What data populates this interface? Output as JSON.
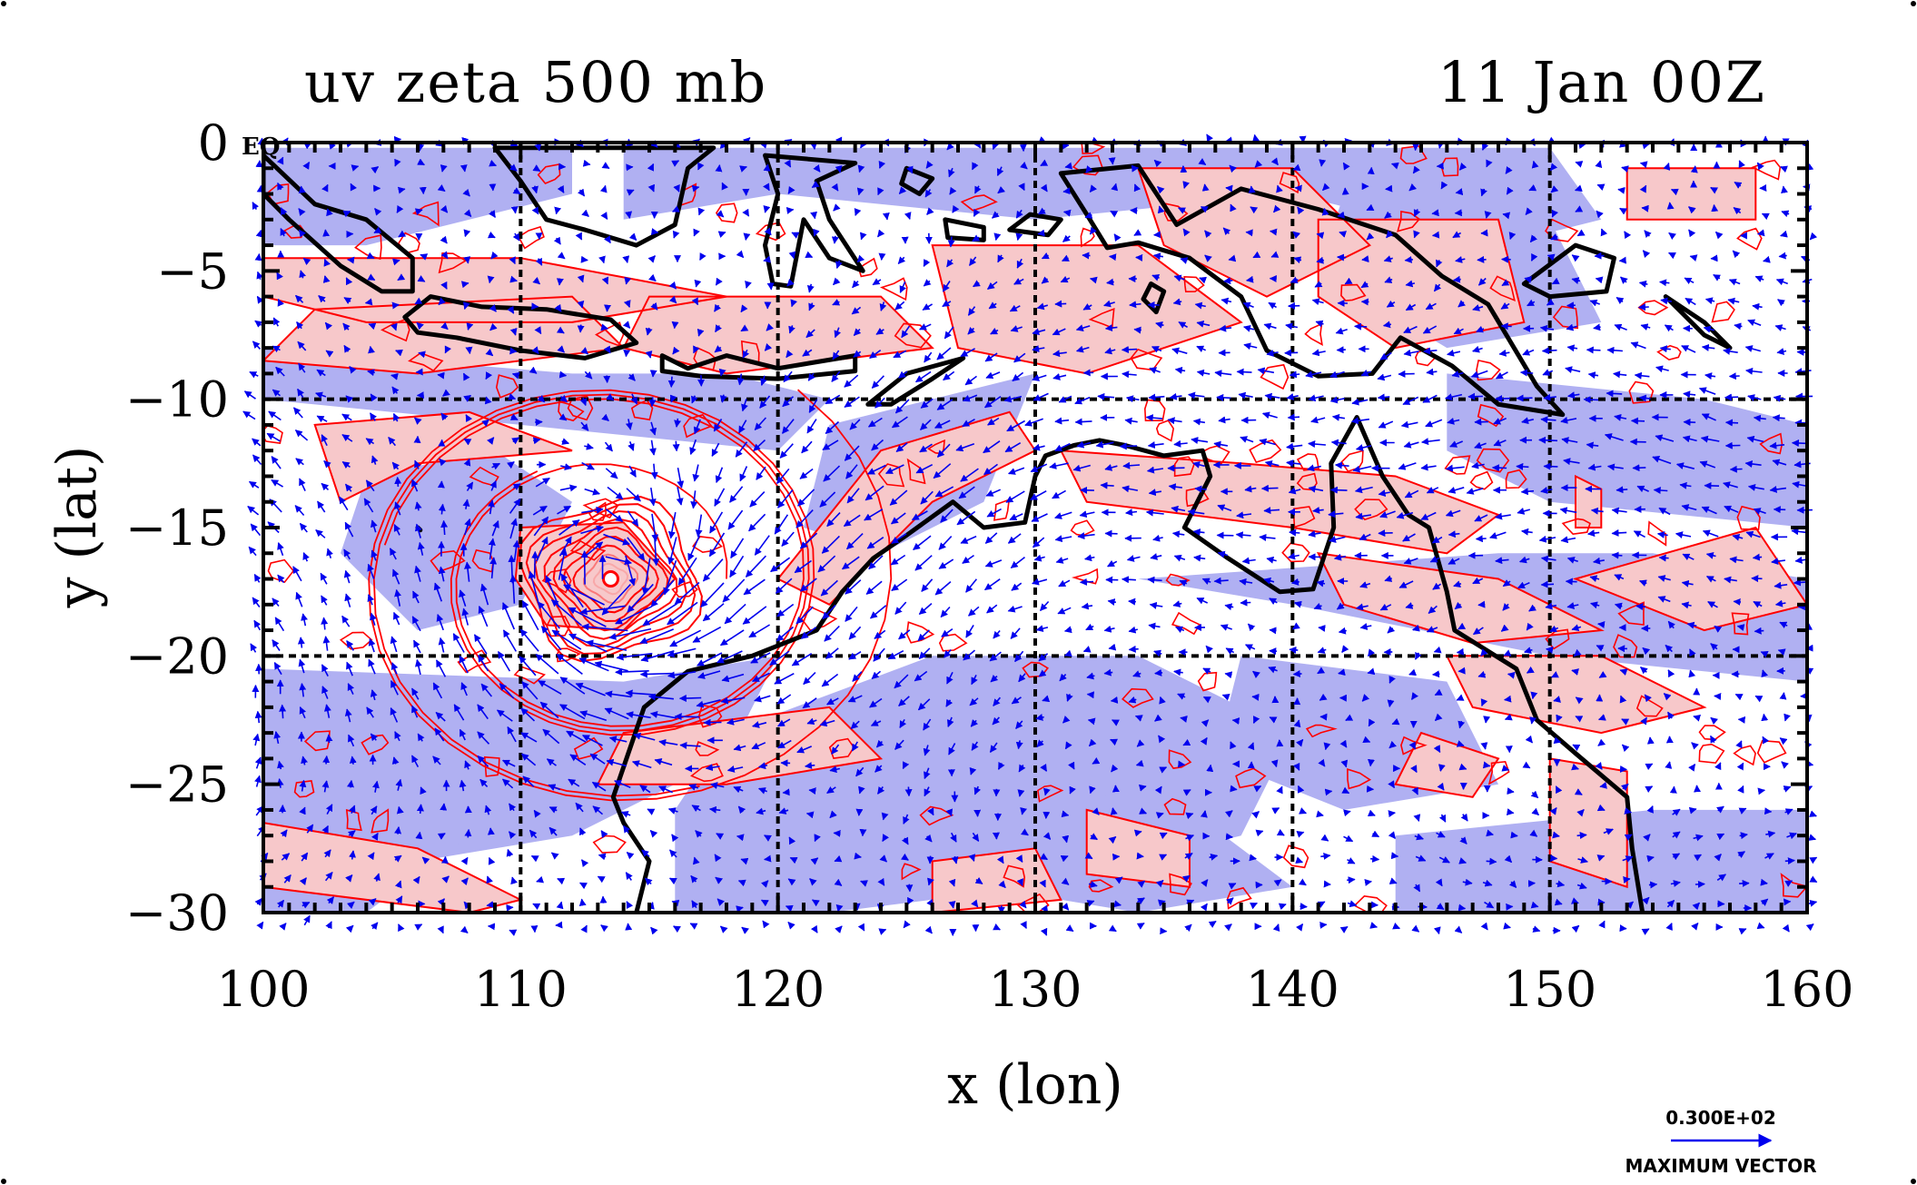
{
  "colors": {
    "positive_fill": "#f7c8ca",
    "positive_contour": "#ff0000",
    "negative_fill": "#b0b0f2",
    "vector": "#0000ee",
    "coast": "#000000",
    "grid": "#000000"
  },
  "chart_data": {
    "type": "vector-contour map",
    "title": "uv zeta 500 mb",
    "subtitle": "11 Jan 00Z",
    "xlabel": "x (lon)",
    "ylabel": "y (lat)",
    "xlim": [
      100,
      160
    ],
    "ylim": [
      -30,
      0
    ],
    "xticks": [
      100,
      110,
      120,
      130,
      140,
      150,
      160
    ],
    "yticks": [
      0,
      -5,
      -10,
      -15,
      -20,
      -25,
      -30
    ],
    "xtick_labels": [
      "100",
      "110",
      "120",
      "130",
      "140",
      "150",
      "160"
    ],
    "ytick_labels": [
      "0",
      "−5",
      "−10",
      "−15",
      "−20",
      "−25",
      "−30"
    ],
    "grid_lines": {
      "x": [
        110,
        120,
        130,
        140,
        150
      ],
      "y": [
        -10,
        -20
      ]
    },
    "corner_label": "EQ",
    "vector_field": "u,v wind (500 mb)",
    "shaded_field": "relative vorticity zeta",
    "cyclone_center": {
      "lon": 113.5,
      "lat": -17.0
    },
    "max_vector_value": "0.300E+02",
    "max_vector_label": "MAXIMUM VECTOR"
  }
}
